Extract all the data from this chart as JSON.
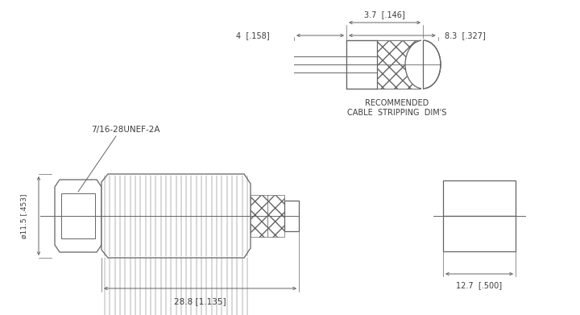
{
  "bg_color": "#ffffff",
  "line_color": "#646464",
  "text_color": "#3c3c3c",
  "fig_width": 7.2,
  "fig_height": 3.91,
  "dpi": 100,
  "annotations": {
    "thread": "7/16-28UNEF-2A",
    "dim_dia": "ø11.5 [.453]",
    "dim_length": "28.8 [1.135]",
    "dim_37": "3.7  [.146]",
    "dim_4": "4  [.158]",
    "dim_83": "8.3  [.327]",
    "rec_line1": "RECOMMENDED",
    "rec_line2": "CABLE  STRIPPING  DIM'S",
    "dim_127": "12.7  [.500]"
  }
}
